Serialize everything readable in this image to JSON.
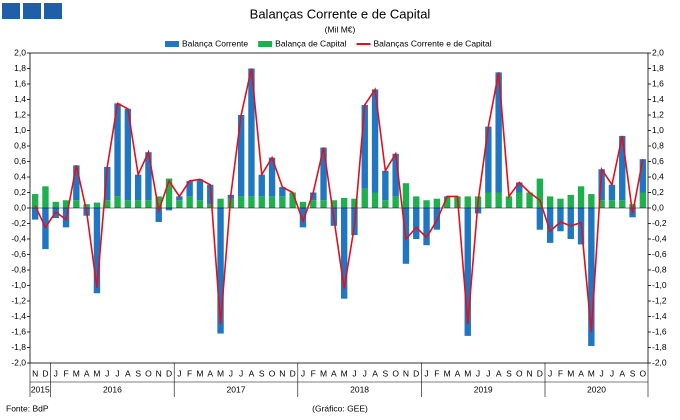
{
  "chart_data": {
    "type": "bar",
    "stacked": true,
    "title": "Balanças Corrente e de Capital",
    "subtitle": "(Mil M€)",
    "source": "Fonte: BdP",
    "credit": "(Gráfico: GEE)",
    "categories": [
      "N",
      "D",
      "J",
      "F",
      "M",
      "A",
      "M",
      "J",
      "J",
      "A",
      "S",
      "O",
      "N",
      "D",
      "J",
      "F",
      "M",
      "A",
      "M",
      "J",
      "J",
      "A",
      "S",
      "O",
      "N",
      "D",
      "J",
      "F",
      "M",
      "A",
      "M",
      "J",
      "J",
      "A",
      "S",
      "O",
      "N",
      "D",
      "J",
      "F",
      "M",
      "A",
      "M",
      "J",
      "J",
      "A",
      "S",
      "O",
      "N",
      "D",
      "J",
      "F",
      "M",
      "A",
      "M",
      "J",
      "J",
      "A",
      "S",
      "O"
    ],
    "year_groups": [
      {
        "label": "2015",
        "size": 2
      },
      {
        "label": "2016",
        "size": 12
      },
      {
        "label": "2017",
        "size": 12
      },
      {
        "label": "2018",
        "size": 12
      },
      {
        "label": "2019",
        "size": 12
      },
      {
        "label": "2020",
        "size": 10
      }
    ],
    "series": [
      {
        "name": "Balança Corrente",
        "color": "#1f77c4",
        "type": "bar",
        "values": [
          -0.15,
          -0.53,
          -0.13,
          -0.25,
          0.45,
          -0.1,
          -1.1,
          0.43,
          1.2,
          1.18,
          0.33,
          0.62,
          -0.18,
          -0.03,
          0.05,
          0.2,
          0.27,
          0.25,
          -1.62,
          0.05,
          1.05,
          1.65,
          0.28,
          0.5,
          0.12,
          0.0,
          -0.25,
          0.1,
          0.68,
          -0.23,
          -1.17,
          -0.35,
          1.08,
          1.33,
          0.38,
          0.55,
          -0.72,
          -0.4,
          -0.48,
          -0.28,
          0.02,
          0.0,
          -1.65,
          -0.07,
          0.85,
          1.55,
          0.0,
          0.13,
          0.0,
          -0.28,
          -0.45,
          -0.3,
          -0.4,
          -0.47,
          -1.78,
          0.4,
          0.2,
          0.83,
          -0.12,
          0.43
        ]
      },
      {
        "name": "Balança de Capital",
        "color": "#1db14e",
        "type": "bar",
        "values": [
          0.18,
          0.28,
          0.08,
          0.1,
          0.1,
          0.05,
          0.07,
          0.1,
          0.15,
          0.1,
          0.1,
          0.1,
          0.15,
          0.38,
          0.1,
          0.15,
          0.1,
          0.05,
          0.12,
          0.12,
          0.15,
          0.15,
          0.15,
          0.15,
          0.15,
          0.2,
          0.08,
          0.1,
          0.1,
          0.1,
          0.13,
          0.12,
          0.25,
          0.2,
          0.1,
          0.15,
          0.32,
          0.15,
          0.1,
          0.12,
          0.13,
          0.15,
          0.15,
          0.15,
          0.2,
          0.2,
          0.15,
          0.2,
          0.2,
          0.38,
          0.15,
          0.12,
          0.17,
          0.28,
          0.18,
          0.1,
          0.1,
          0.1,
          0.05,
          0.2
        ]
      },
      {
        "name": "Balanças Corrente e de Capital",
        "color": "#e3101c",
        "type": "line",
        "values": [
          0.03,
          -0.25,
          -0.05,
          -0.15,
          0.55,
          -0.05,
          -1.03,
          0.53,
          1.35,
          1.28,
          0.43,
          0.72,
          -0.03,
          0.35,
          0.15,
          0.35,
          0.37,
          0.3,
          -1.5,
          0.17,
          1.2,
          1.8,
          0.43,
          0.65,
          0.27,
          0.2,
          -0.17,
          0.2,
          0.78,
          -0.13,
          -1.04,
          -0.23,
          1.33,
          1.53,
          0.48,
          0.7,
          -0.4,
          -0.25,
          -0.38,
          -0.16,
          0.15,
          0.15,
          -1.5,
          0.08,
          1.05,
          1.75,
          0.15,
          0.33,
          0.2,
          0.1,
          -0.3,
          -0.18,
          -0.23,
          -0.19,
          -1.6,
          0.5,
          0.3,
          0.93,
          -0.07,
          0.63
        ]
      }
    ],
    "ylim": [
      -2.0,
      2.0
    ],
    "yticks": [
      {
        "value": -2.0,
        "label": "-2,0"
      },
      {
        "value": -1.8,
        "label": "-1,8"
      },
      {
        "value": -1.6,
        "label": "-1,6"
      },
      {
        "value": -1.4,
        "label": "-1,4"
      },
      {
        "value": -1.2,
        "label": "-1,2"
      },
      {
        "value": -1.0,
        "label": "-1,0"
      },
      {
        "value": -0.8,
        "label": "-0,8"
      },
      {
        "value": -0.6,
        "label": "-0,6"
      },
      {
        "value": -0.4,
        "label": "-0,4"
      },
      {
        "value": -0.2,
        "label": "-0,2"
      },
      {
        "value": 0.0,
        "label": "0,0"
      },
      {
        "value": 0.2,
        "label": "0,2"
      },
      {
        "value": 0.4,
        "label": "0,4"
      },
      {
        "value": 0.6,
        "label": "0,6"
      },
      {
        "value": 0.8,
        "label": "0,8"
      },
      {
        "value": 1.0,
        "label": "1,0"
      },
      {
        "value": 1.2,
        "label": "1,2"
      },
      {
        "value": 1.4,
        "label": "1,4"
      },
      {
        "value": 1.6,
        "label": "1,6"
      },
      {
        "value": 1.8,
        "label": "1,8"
      },
      {
        "value": 2.0,
        "label": "2,0"
      }
    ],
    "grid": false,
    "right_axis": true
  }
}
